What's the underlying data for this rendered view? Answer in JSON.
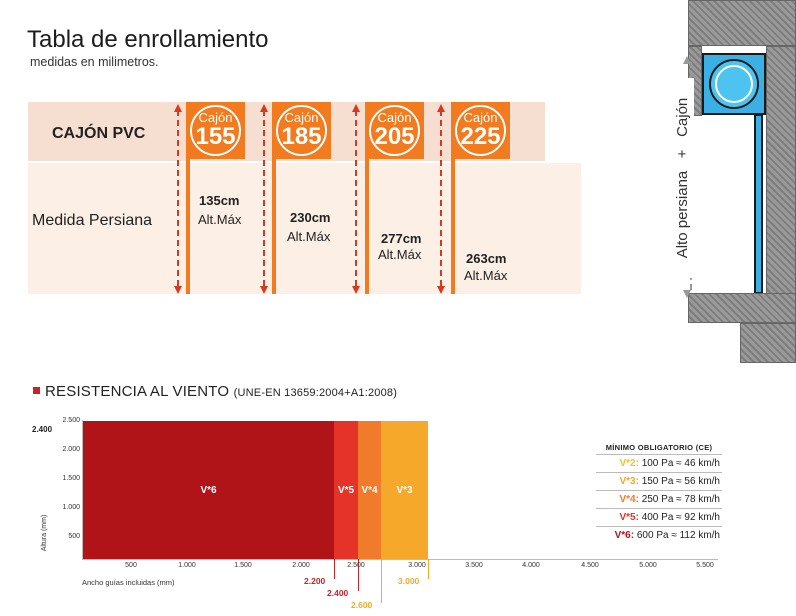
{
  "header": {
    "title": "Tabla de enrollamiento",
    "subtitle": "medidas en milimetros."
  },
  "table": {
    "row1_label": "CAJÓN PVC",
    "row2_label": "Medida Persiana",
    "cajon_word": "Cajón",
    "columns": [
      {
        "size": "155",
        "height": "135cm",
        "note": "Alt.Máx"
      },
      {
        "size": "185",
        "height": "230cm",
        "note": "Alt.Máx"
      },
      {
        "size": "205",
        "height": "277cm",
        "note": "Alt.Máx"
      },
      {
        "size": "225",
        "height": "263cm",
        "note": "Alt.Máx"
      }
    ]
  },
  "diagram": {
    "label_alto": "Alto persiana",
    "label_plus": "+",
    "label_cajon": "Cajón"
  },
  "wind": {
    "title": "RESISTENCIA AL VIENTO",
    "norm": "(UNE-EN 13659:2004+A1:2008)",
    "y_axis_label": "Altura (mm)",
    "x_axis_label": "Ancho guías incluidas (mm)",
    "y_max_label": "2.400",
    "y_ticks": [
      "2.500",
      "2.000",
      "1.500",
      "1.000",
      "500"
    ],
    "x_ticks": [
      "500",
      "1.000",
      "1.500",
      "2.000",
      "2.500",
      "3.000",
      "3.500",
      "4.000",
      "4.500",
      "5.000",
      "5.500"
    ],
    "width_marks": [
      {
        "value": "2.200",
        "color": "#c8222b"
      },
      {
        "value": "2.400",
        "color": "#c8222b"
      },
      {
        "value": "2.600",
        "color": "#f5a82a"
      },
      {
        "value": "3.000",
        "color": "#f5a82a"
      }
    ],
    "bars": [
      {
        "label": "V*6",
        "color": "#b01419"
      },
      {
        "label": "V*5",
        "color": "#e5332a"
      },
      {
        "label": "V*4",
        "color": "#f07b2b"
      },
      {
        "label": "V*3",
        "color": "#f5a82a"
      }
    ],
    "legend": {
      "title": "MÍNIMO OBLIGATORIO (CE)",
      "rows": [
        {
          "code": "V*2:",
          "text": "100 Pa ≈ 46 km/h",
          "color": "#f5c22a"
        },
        {
          "code": "V*3:",
          "text": "150 Pa ≈ 56 km/h",
          "color": "#f5a82a"
        },
        {
          "code": "V*4:",
          "text": "250 Pa ≈ 78 km/h",
          "color": "#f07b2b"
        },
        {
          "code": "V*5:",
          "text": "400 Pa ≈ 92 km/h",
          "color": "#e5332a"
        },
        {
          "code": "V*6:",
          "text": "600 Pa ≈ 112 km/h",
          "color": "#b01419"
        }
      ]
    }
  }
}
